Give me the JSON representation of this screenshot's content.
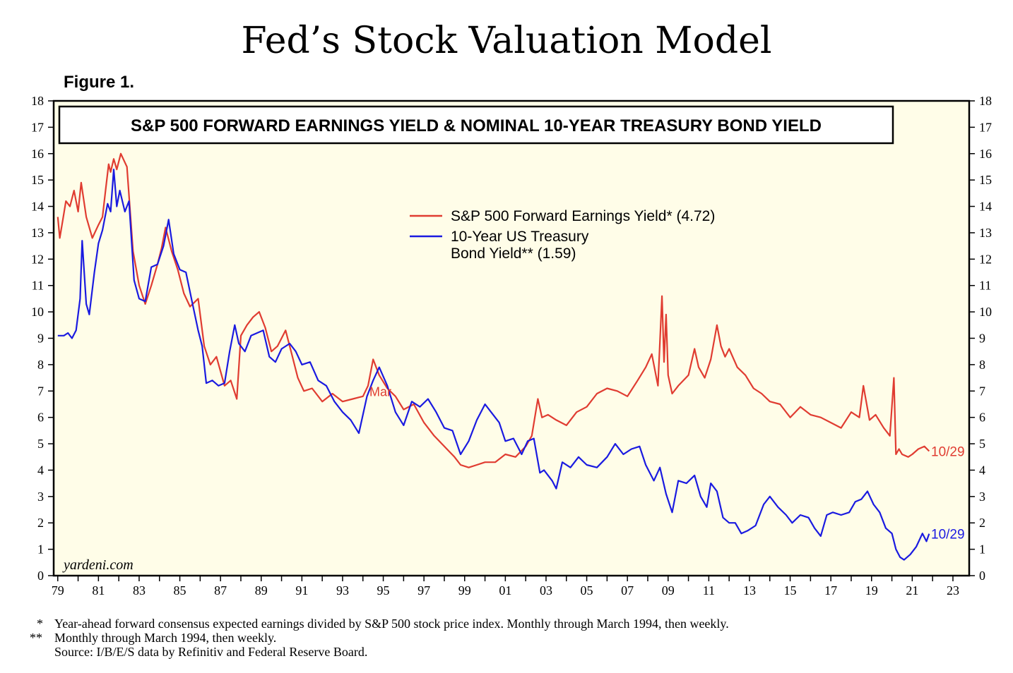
{
  "page": {
    "title": "Fed’s Stock Valuation Model",
    "figure_label": "Figure 1.",
    "watermark": "yardeni.com",
    "footnotes": [
      {
        "mark": "*",
        "text": "Year-ahead forward consensus expected earnings divided by S&P 500 stock price index. Monthly through March 1994, then weekly."
      },
      {
        "mark": "**",
        "text": "Monthly through March 1994, then weekly."
      },
      {
        "mark": "",
        "text": "Source: I/B/E/S data by Refinitiv and Federal Reserve Board."
      }
    ]
  },
  "chart_data": {
    "type": "line",
    "title": "S&P 500 FORWARD EARNINGS YIELD & NOMINAL 10-YEAR TREASURY BOND YIELD",
    "xlabel": "",
    "ylabel": "",
    "xlim": [
      1978.8,
      2023.8
    ],
    "ylim": [
      0,
      18
    ],
    "x_ticks": [
      1979,
      1981,
      1983,
      1985,
      1987,
      1989,
      1991,
      1993,
      1995,
      1997,
      1999,
      2001,
      2003,
      2005,
      2007,
      2009,
      2011,
      2013,
      2015,
      2017,
      2019,
      2021,
      2023
    ],
    "x_tick_labels": [
      "79",
      "81",
      "83",
      "85",
      "87",
      "89",
      "91",
      "93",
      "95",
      "97",
      "99",
      "01",
      "03",
      "05",
      "07",
      "09",
      "11",
      "13",
      "15",
      "17",
      "19",
      "21",
      "23"
    ],
    "y_ticks": [
      0,
      1,
      2,
      3,
      4,
      5,
      6,
      7,
      8,
      9,
      10,
      11,
      12,
      13,
      14,
      15,
      16,
      17,
      18
    ],
    "grid": false,
    "plot_background": "#fffde8",
    "legend_position": "top-center",
    "series": [
      {
        "name": "S&P 500 Forward Earnings Yield* (4.72)",
        "color": "#e03c31",
        "end_label": "10/29",
        "x": [
          1979.0,
          1979.1,
          1979.25,
          1979.4,
          1979.6,
          1979.8,
          1980.0,
          1980.15,
          1980.4,
          1980.7,
          1981.0,
          1981.2,
          1981.35,
          1981.5,
          1981.6,
          1981.75,
          1981.9,
          1982.1,
          1982.4,
          1982.7,
          1983.0,
          1983.3,
          1983.6,
          1983.9,
          1984.1,
          1984.3,
          1984.6,
          1984.9,
          1985.2,
          1985.5,
          1985.9,
          1986.2,
          1986.5,
          1986.8,
          1987.2,
          1987.5,
          1987.8,
          1988.0,
          1988.3,
          1988.6,
          1988.9,
          1989.2,
          1989.5,
          1989.8,
          1990.2,
          1990.5,
          1990.8,
          1991.1,
          1991.5,
          1992.0,
          1992.5,
          1993.0,
          1993.5,
          1994.0,
          1994.25,
          1994.5,
          1994.8,
          1995.2,
          1995.6,
          1996.0,
          1996.5,
          1997.0,
          1997.5,
          1998.0,
          1998.5,
          1998.8,
          1999.2,
          1999.6,
          2000.0,
          2000.5,
          2001.0,
          2001.5,
          2002.0,
          2002.3,
          2002.6,
          2002.8,
          2003.1,
          2003.5,
          2004.0,
          2004.5,
          2005.0,
          2005.5,
          2006.0,
          2006.5,
          2007.0,
          2007.5,
          2007.9,
          2008.2,
          2008.5,
          2008.7,
          2008.8,
          2008.9,
          2009.0,
          2009.2,
          2009.5,
          2010.0,
          2010.3,
          2010.5,
          2010.8,
          2011.1,
          2011.4,
          2011.6,
          2011.8,
          2012.0,
          2012.4,
          2012.8,
          2013.2,
          2013.6,
          2014.0,
          2014.5,
          2015.0,
          2015.5,
          2016.0,
          2016.5,
          2017.0,
          2017.5,
          2018.0,
          2018.4,
          2018.6,
          2018.9,
          2019.2,
          2019.6,
          2019.9,
          2020.1,
          2020.2,
          2020.35,
          2020.5,
          2020.8,
          2021.0,
          2021.3,
          2021.6,
          2021.83
        ],
        "values": [
          13.6,
          12.8,
          13.5,
          14.2,
          14.0,
          14.6,
          13.8,
          14.9,
          13.6,
          12.8,
          13.3,
          13.6,
          14.6,
          15.6,
          15.3,
          15.8,
          15.4,
          16.0,
          15.5,
          12.3,
          11.0,
          10.3,
          11.0,
          11.8,
          12.4,
          13.2,
          12.3,
          11.6,
          10.7,
          10.2,
          10.5,
          8.7,
          8.0,
          8.3,
          7.2,
          7.4,
          6.7,
          9.1,
          9.5,
          9.8,
          10.0,
          9.4,
          8.5,
          8.7,
          9.3,
          8.4,
          7.5,
          7.0,
          7.1,
          6.6,
          6.9,
          6.6,
          6.7,
          6.8,
          7.2,
          8.2,
          7.6,
          7.1,
          6.8,
          6.3,
          6.5,
          5.8,
          5.3,
          4.9,
          4.5,
          4.2,
          4.1,
          4.2,
          4.3,
          4.3,
          4.6,
          4.5,
          4.9,
          5.3,
          6.7,
          6.0,
          6.1,
          5.9,
          5.7,
          6.2,
          6.4,
          6.9,
          7.1,
          7.0,
          6.8,
          7.4,
          7.9,
          8.4,
          7.2,
          10.6,
          8.1,
          9.9,
          7.6,
          6.9,
          7.2,
          7.6,
          8.6,
          7.9,
          7.5,
          8.2,
          9.5,
          8.7,
          8.3,
          8.6,
          7.9,
          7.6,
          7.1,
          6.9,
          6.6,
          6.5,
          6.0,
          6.4,
          6.1,
          6.0,
          5.8,
          5.6,
          6.2,
          6.0,
          7.2,
          5.9,
          6.1,
          5.6,
          5.3,
          7.5,
          4.6,
          4.8,
          4.6,
          4.5,
          4.6,
          4.8,
          4.9,
          4.72
        ]
      },
      {
        "name": "10-Year US Treasury\nBond Yield** (1.59)",
        "color": "#1a1ae0",
        "end_label": "10/29",
        "x": [
          1979.0,
          1979.3,
          1979.5,
          1979.7,
          1979.9,
          1980.1,
          1980.2,
          1980.4,
          1980.55,
          1980.8,
          1981.0,
          1981.2,
          1981.45,
          1981.6,
          1981.75,
          1981.9,
          1982.05,
          1982.3,
          1982.5,
          1982.75,
          1983.0,
          1983.3,
          1983.6,
          1983.9,
          1984.2,
          1984.45,
          1984.7,
          1985.0,
          1985.3,
          1985.6,
          1985.9,
          1986.1,
          1986.3,
          1986.6,
          1986.9,
          1987.2,
          1987.45,
          1987.7,
          1987.9,
          1988.2,
          1988.5,
          1988.8,
          1989.1,
          1989.4,
          1989.7,
          1990.0,
          1990.4,
          1990.7,
          1991.0,
          1991.4,
          1991.8,
          1992.2,
          1992.6,
          1993.0,
          1993.4,
          1993.8,
          1994.2,
          1994.5,
          1994.8,
          1995.2,
          1995.6,
          1996.0,
          1996.4,
          1996.8,
          1997.2,
          1997.6,
          1998.0,
          1998.4,
          1998.8,
          1999.2,
          1999.6,
          2000.0,
          2000.3,
          2000.7,
          2001.0,
          2001.4,
          2001.8,
          2002.1,
          2002.4,
          2002.7,
          2002.9,
          2003.3,
          2003.5,
          2003.8,
          2004.2,
          2004.6,
          2005.0,
          2005.5,
          2006.0,
          2006.4,
          2006.8,
          2007.2,
          2007.6,
          2007.9,
          2008.3,
          2008.6,
          2008.9,
          2009.2,
          2009.5,
          2009.9,
          2010.3,
          2010.6,
          2010.9,
          2011.1,
          2011.4,
          2011.7,
          2012.0,
          2012.3,
          2012.6,
          2012.9,
          2013.3,
          2013.7,
          2014.0,
          2014.4,
          2014.8,
          2015.1,
          2015.5,
          2015.9,
          2016.2,
          2016.5,
          2016.8,
          2017.1,
          2017.5,
          2017.9,
          2018.2,
          2018.5,
          2018.8,
          2019.1,
          2019.4,
          2019.7,
          2020.0,
          2020.2,
          2020.4,
          2020.6,
          2020.9,
          2021.2,
          2021.5,
          2021.7,
          2021.83
        ],
        "values": [
          9.1,
          9.1,
          9.2,
          9.0,
          9.3,
          10.5,
          12.7,
          10.3,
          9.9,
          11.5,
          12.6,
          13.1,
          14.1,
          13.8,
          15.4,
          14.0,
          14.6,
          13.8,
          14.2,
          11.2,
          10.5,
          10.4,
          11.7,
          11.8,
          12.5,
          13.5,
          12.2,
          11.6,
          11.5,
          10.4,
          9.3,
          8.7,
          7.3,
          7.4,
          7.2,
          7.3,
          8.5,
          9.5,
          8.8,
          8.5,
          9.1,
          9.2,
          9.3,
          8.3,
          8.1,
          8.6,
          8.8,
          8.5,
          8.0,
          8.1,
          7.4,
          7.2,
          6.6,
          6.2,
          5.9,
          5.4,
          6.8,
          7.4,
          7.9,
          7.2,
          6.2,
          5.7,
          6.6,
          6.4,
          6.7,
          6.2,
          5.6,
          5.5,
          4.6,
          5.1,
          5.9,
          6.5,
          6.2,
          5.8,
          5.1,
          5.2,
          4.6,
          5.1,
          5.2,
          3.9,
          4.0,
          3.6,
          3.3,
          4.3,
          4.1,
          4.5,
          4.2,
          4.1,
          4.5,
          5.0,
          4.6,
          4.8,
          4.9,
          4.2,
          3.6,
          4.1,
          3.1,
          2.4,
          3.6,
          3.5,
          3.8,
          3.0,
          2.6,
          3.5,
          3.2,
          2.2,
          2.0,
          2.0,
          1.6,
          1.7,
          1.9,
          2.7,
          3.0,
          2.6,
          2.3,
          2.0,
          2.3,
          2.2,
          1.8,
          1.5,
          2.3,
          2.4,
          2.3,
          2.4,
          2.8,
          2.9,
          3.2,
          2.7,
          2.4,
          1.8,
          1.6,
          1.0,
          0.7,
          0.6,
          0.8,
          1.1,
          1.6,
          1.3,
          1.59
        ]
      }
    ],
    "annotations": [
      {
        "text": "Mar",
        "x": 1994.25,
        "y": 7.0,
        "color": "#e03c31"
      }
    ]
  }
}
